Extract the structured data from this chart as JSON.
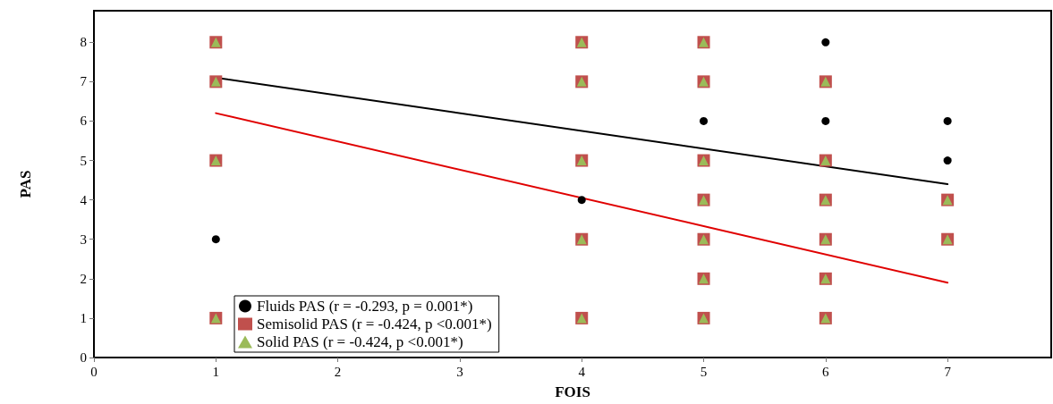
{
  "chart_data": {
    "type": "scatter",
    "xlabel": "FOIS",
    "ylabel": "PAS",
    "xlim": [
      0,
      7.85
    ],
    "xticks": [
      0,
      1,
      2,
      3,
      4,
      5,
      6,
      7
    ],
    "ylim": [
      0,
      8.8
    ],
    "yticks": [
      0,
      1,
      2,
      3,
      4,
      5,
      6,
      7,
      8
    ],
    "grid": false,
    "legend": "bottom left",
    "series": [
      {
        "name": "Fluids PAS (r = -0.293, p = 0.001*)",
        "color": "#000000",
        "marker": "circle",
        "x": [
          1,
          4,
          5,
          6,
          6,
          7,
          7
        ],
        "values": [
          3,
          4,
          6,
          8,
          6,
          6,
          5
        ]
      },
      {
        "name": "Semisolid PAS (r = -0.424, p <0.001*)",
        "color": "#c0504d",
        "marker": "square",
        "x": [
          1,
          1,
          1,
          1,
          4,
          4,
          4,
          4,
          4,
          5,
          5,
          5,
          5,
          5,
          5,
          5,
          6,
          6,
          6,
          6,
          6,
          6,
          7,
          7
        ],
        "values": [
          8,
          7,
          5,
          1,
          8,
          7,
          5,
          3,
          1,
          8,
          7,
          5,
          4,
          3,
          2,
          1,
          7,
          5,
          4,
          3,
          2,
          1,
          4,
          3
        ]
      },
      {
        "name": "Solid PAS (r = -0.424, p <0.001*)",
        "color": "#9bbb59",
        "marker": "triangle",
        "x": [
          1,
          1,
          1,
          1,
          4,
          4,
          4,
          4,
          4,
          5,
          5,
          5,
          5,
          5,
          5,
          5,
          6,
          6,
          6,
          6,
          6,
          6,
          7,
          7
        ],
        "values": [
          8,
          7,
          5,
          1,
          8,
          7,
          5,
          3,
          1,
          8,
          7,
          5,
          4,
          3,
          2,
          1,
          7,
          5,
          4,
          3,
          2,
          1,
          4,
          3
        ]
      },
      {
        "type": "line",
        "color": "#000000",
        "marker": "none",
        "x": [
          1,
          7
        ],
        "values": [
          7.1,
          4.4
        ]
      },
      {
        "type": "line",
        "color": "#e00000",
        "marker": "none",
        "x": [
          1,
          7
        ],
        "values": [
          6.2,
          1.9
        ]
      }
    ]
  }
}
